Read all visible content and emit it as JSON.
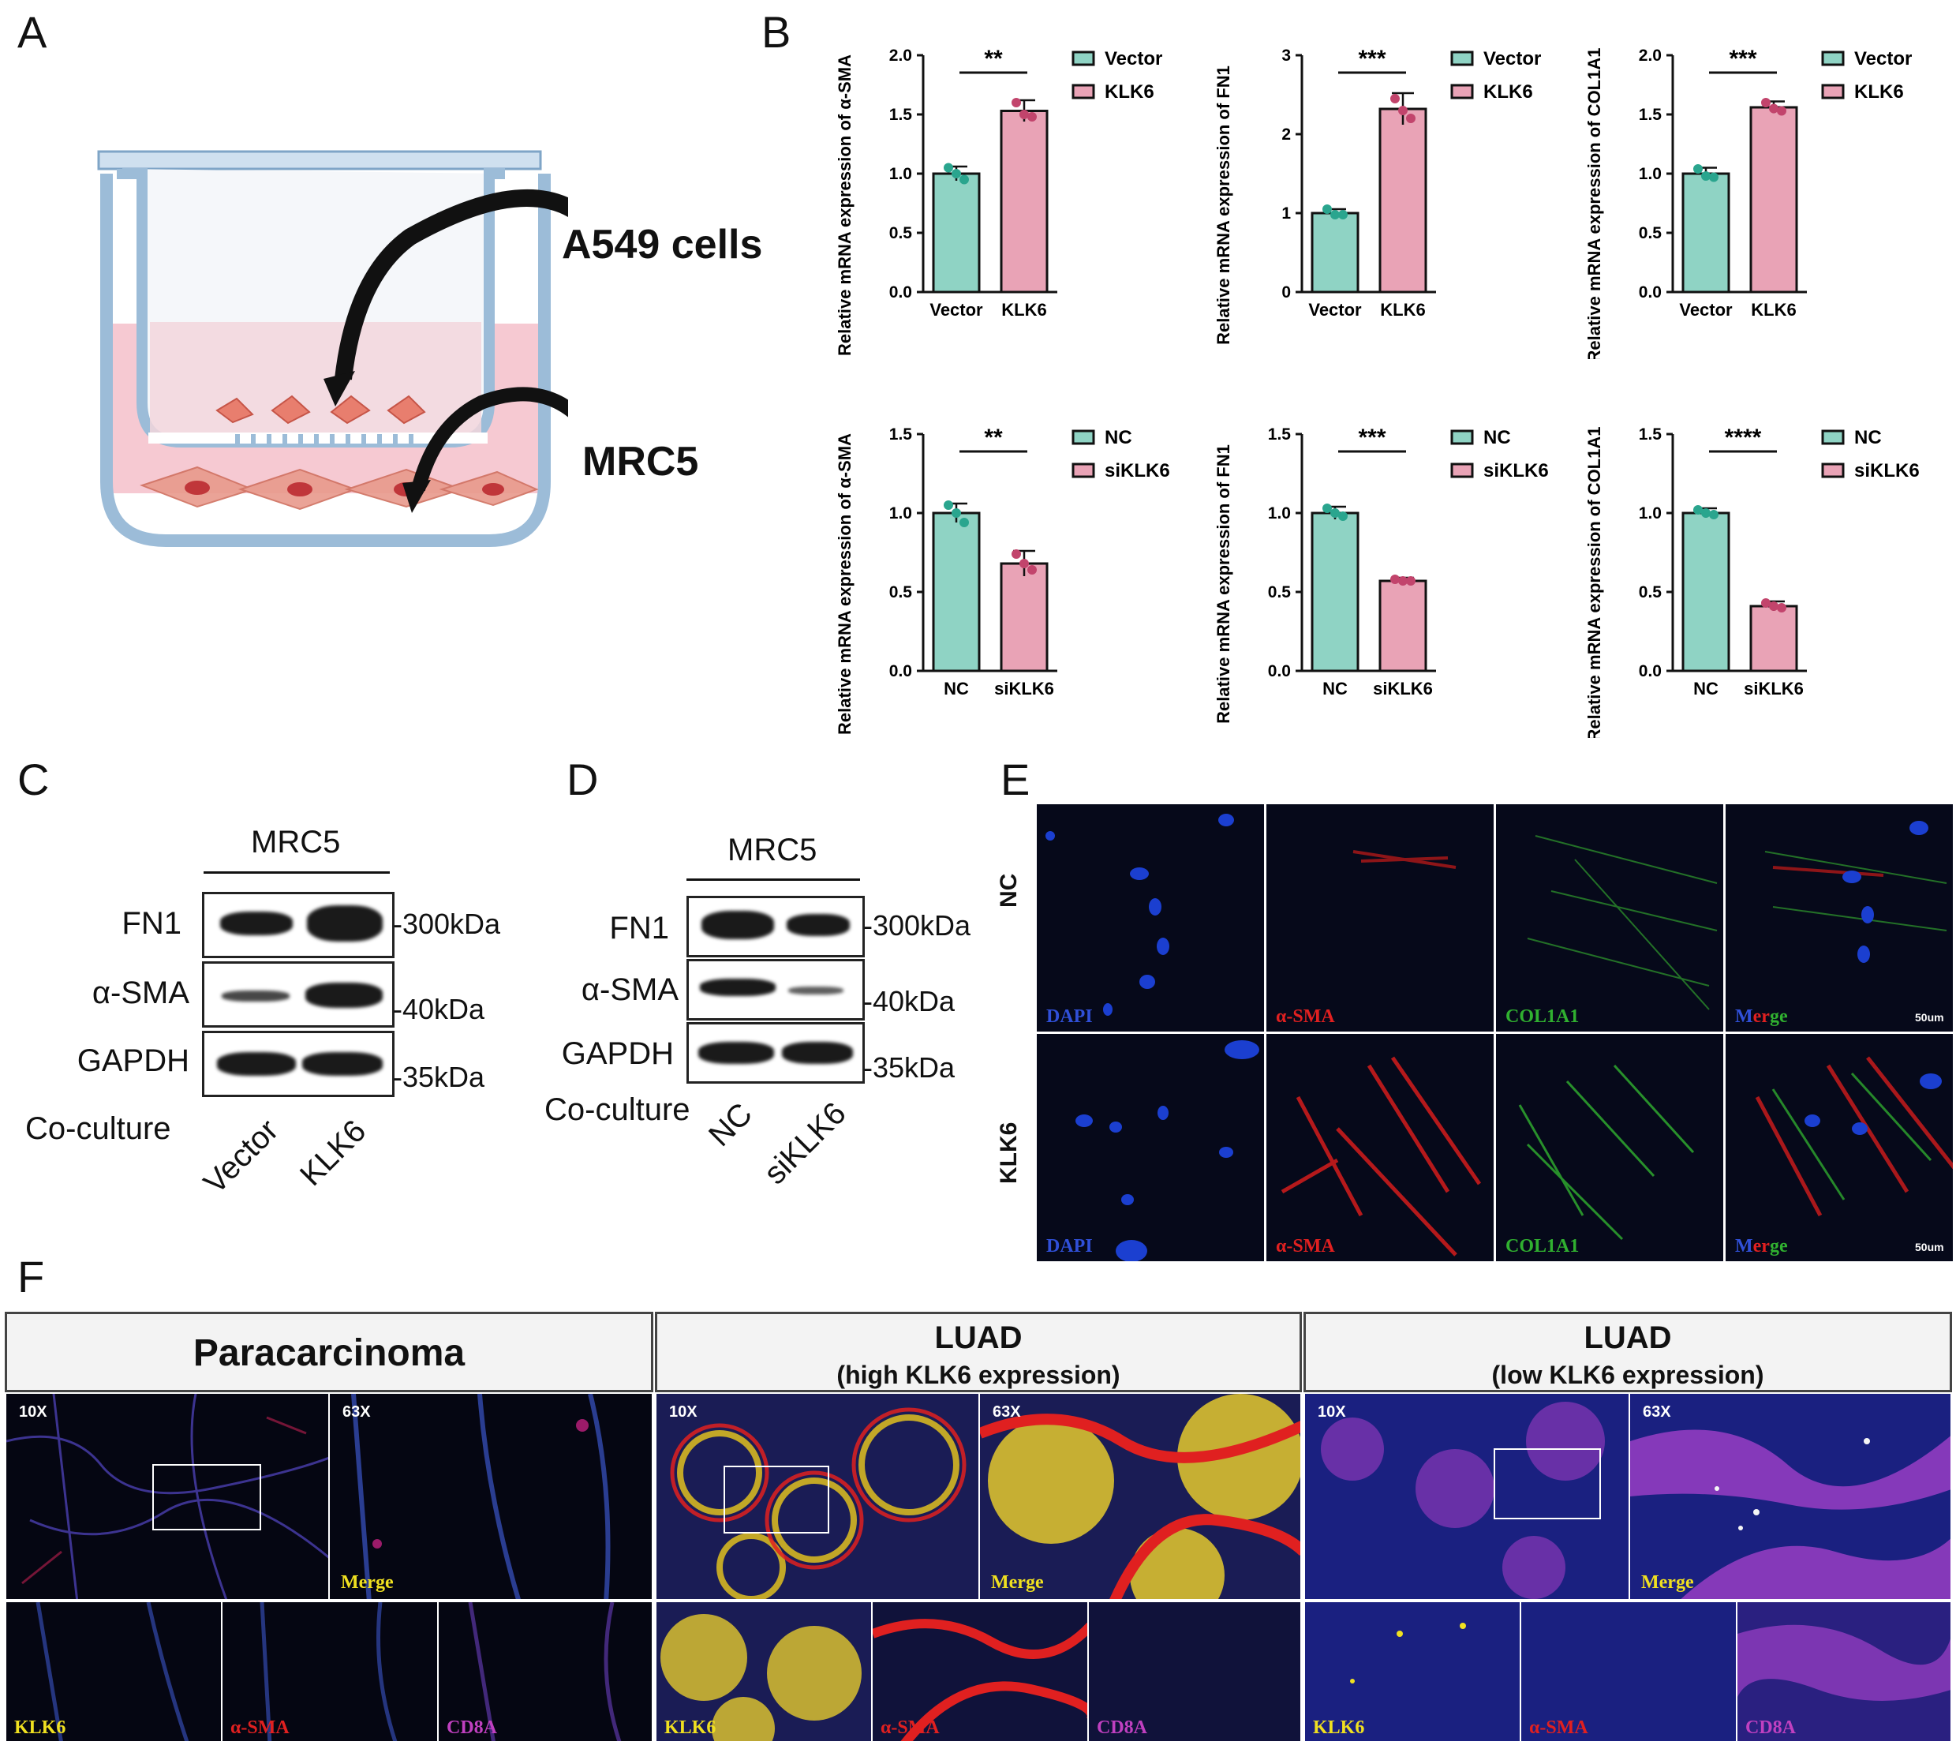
{
  "panels": {
    "a": "A",
    "b": "B",
    "c": "C",
    "d": "D",
    "e": "E",
    "f": "F"
  },
  "panelA": {
    "label1": "A549 cells",
    "label2": "MRC5"
  },
  "panelB": {
    "charts": [
      {
        "ylabel": "Relative mRNA expression of α-SMA",
        "categories": [
          "Vector",
          "KLK6"
        ],
        "values": [
          1.0,
          1.53
        ],
        "errors": [
          0.06,
          0.09
        ],
        "points": [
          [
            1.05,
            1.0,
            0.95
          ],
          [
            1.6,
            1.5,
            1.48
          ]
        ],
        "ylim": [
          0,
          2.0
        ],
        "ticks": [
          "0.0",
          "0.5",
          "1.0",
          "1.5",
          "2.0"
        ],
        "sig": "**",
        "legend": [
          "Vector",
          "KLK6"
        ]
      },
      {
        "ylabel": "Relative mRNA expression of FN1",
        "categories": [
          "Vector",
          "KLK6"
        ],
        "values": [
          1.0,
          2.32
        ],
        "errors": [
          0.05,
          0.2
        ],
        "points": [
          [
            1.05,
            0.98,
            0.98
          ],
          [
            2.45,
            2.3,
            2.2
          ]
        ],
        "ylim": [
          0,
          3
        ],
        "ticks": [
          "0",
          "1",
          "2",
          "3"
        ],
        "sig": "***",
        "legend": [
          "Vector",
          "KLK6"
        ]
      },
      {
        "ylabel": "Relative mRNA expression of COL1A1",
        "categories": [
          "Vector",
          "KLK6"
        ],
        "values": [
          1.0,
          1.56
        ],
        "errors": [
          0.05,
          0.05
        ],
        "points": [
          [
            1.04,
            0.98,
            0.97
          ],
          [
            1.6,
            1.55,
            1.53
          ]
        ],
        "ylim": [
          0,
          2.0
        ],
        "ticks": [
          "0.0",
          "0.5",
          "1.0",
          "1.5",
          "2.0"
        ],
        "sig": "***",
        "legend": [
          "Vector",
          "KLK6"
        ]
      },
      {
        "ylabel": "Relative mRNA expression of α-SMA",
        "categories": [
          "NC",
          "siKLK6"
        ],
        "values": [
          1.0,
          0.68
        ],
        "errors": [
          0.06,
          0.08
        ],
        "points": [
          [
            1.05,
            1.0,
            0.94
          ],
          [
            0.74,
            0.68,
            0.64
          ]
        ],
        "ylim": [
          0,
          1.5
        ],
        "ticks": [
          "0.0",
          "0.5",
          "1.0",
          "1.5"
        ],
        "sig": "**",
        "legend": [
          "NC",
          "siKLK6"
        ]
      },
      {
        "ylabel": "Relative mRNA expression of FN1",
        "categories": [
          "NC",
          "siKLK6"
        ],
        "values": [
          1.0,
          0.57
        ],
        "errors": [
          0.04,
          0.02
        ],
        "points": [
          [
            1.03,
            1.0,
            0.98
          ],
          [
            0.58,
            0.57,
            0.57
          ]
        ],
        "ylim": [
          0,
          1.5
        ],
        "ticks": [
          "0.0",
          "0.5",
          "1.0",
          "1.5"
        ],
        "sig": "***",
        "legend": [
          "NC",
          "siKLK6"
        ]
      },
      {
        "ylabel": "Relative mRNA expression of COL1A1",
        "categories": [
          "NC",
          "siKLK6"
        ],
        "values": [
          1.0,
          0.41
        ],
        "errors": [
          0.03,
          0.03
        ],
        "points": [
          [
            1.02,
            1.0,
            0.99
          ],
          [
            0.43,
            0.41,
            0.4
          ]
        ],
        "ylim": [
          0,
          1.5
        ],
        "ticks": [
          "0.0",
          "0.5",
          "1.0",
          "1.5"
        ],
        "sig": "****",
        "legend": [
          "NC",
          "siKLK6"
        ]
      }
    ]
  },
  "chart_data": [
    {
      "type": "bar",
      "ylabel": "Relative mRNA expression of α-SMA",
      "categories": [
        "Vector",
        "KLK6"
      ],
      "values": [
        1.0,
        1.53
      ],
      "ylim": [
        0,
        2.0
      ]
    },
    {
      "type": "bar",
      "ylabel": "Relative mRNA expression of FN1",
      "categories": [
        "Vector",
        "KLK6"
      ],
      "values": [
        1.0,
        2.32
      ],
      "ylim": [
        0,
        3
      ]
    },
    {
      "type": "bar",
      "ylabel": "Relative mRNA expression of COL1A1",
      "categories": [
        "Vector",
        "KLK6"
      ],
      "values": [
        1.0,
        1.56
      ],
      "ylim": [
        0,
        2.0
      ]
    },
    {
      "type": "bar",
      "ylabel": "Relative mRNA expression of α-SMA",
      "categories": [
        "NC",
        "siKLK6"
      ],
      "values": [
        1.0,
        0.68
      ],
      "ylim": [
        0,
        1.5
      ]
    },
    {
      "type": "bar",
      "ylabel": "Relative mRNA expression of FN1",
      "categories": [
        "NC",
        "siKLK6"
      ],
      "values": [
        1.0,
        0.57
      ],
      "ylim": [
        0,
        1.5
      ]
    },
    {
      "type": "bar",
      "ylabel": "Relative mRNA expression of COL1A1",
      "categories": [
        "NC",
        "siKLK6"
      ],
      "values": [
        1.0,
        0.41
      ],
      "ylim": [
        0,
        1.5
      ]
    }
  ],
  "panelC": {
    "title": "MRC5",
    "rows": [
      "FN1",
      "α-SMA",
      "GAPDH"
    ],
    "kda": [
      "-300kDa",
      "-40kDa",
      "-35kDa"
    ],
    "coculture": "Co-culture",
    "lanes": [
      "Vector",
      "KLK6"
    ]
  },
  "panelD": {
    "title": "MRC5",
    "rows": [
      "FN1",
      "α-SMA",
      "GAPDH"
    ],
    "kda": [
      "-300kDa",
      "-40kDa",
      "-35kDa"
    ],
    "coculture": "Co-culture",
    "lanes": [
      "NC",
      "siKLK6"
    ]
  },
  "panelE": {
    "rows": [
      "NC",
      "KLK6"
    ],
    "channels": [
      "DAPI",
      "α-SMA",
      "COL1A1"
    ],
    "merge": "Merge",
    "scale": "50um"
  },
  "panelF": {
    "headers": [
      {
        "title": "Paracarcinoma",
        "sub": ""
      },
      {
        "title": "LUAD",
        "sub": "(high KLK6 expression)"
      },
      {
        "title": "LUAD",
        "sub": "(low KLK6 expression)"
      }
    ],
    "mag10": "10X",
    "mag63": "63X",
    "merge": "Merge",
    "channels": [
      "KLK6",
      "α-SMA",
      "CD8A"
    ]
  },
  "colors": {
    "teal": "#8fd3c4",
    "pink": "#e9a3b6",
    "tealPoint": "#2aa58e",
    "pinkPoint": "#c2446c"
  }
}
